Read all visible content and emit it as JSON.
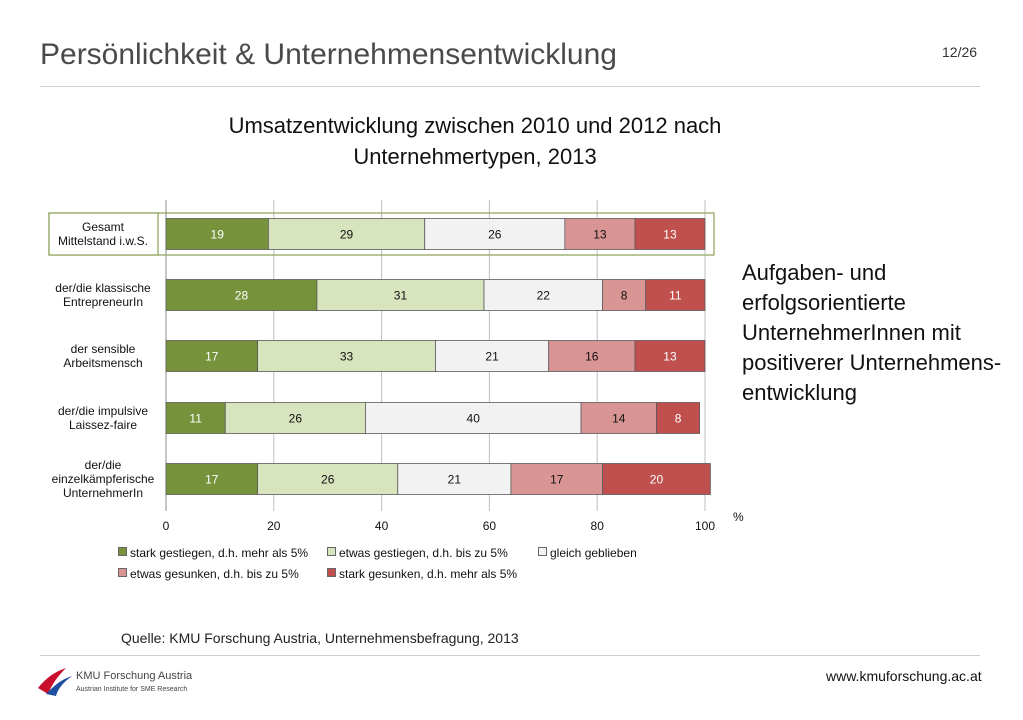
{
  "page": {
    "title": "Persönlichkeit & Unternehmensentwicklung",
    "page_number": "12/26",
    "source": "Quelle: KMU Forschung Austria, Unternehmensbefragung, 2013",
    "website": "www.kmuforschung.ac.at",
    "annotation": "Aufgaben- und erfolgsorientierte UnternehmerInnen mit positiverer Unternehmens-entwicklung"
  },
  "logo": {
    "name": "KMU Forschung Austria",
    "subtitle": "Austrian Institute for SME Research",
    "colors": [
      "#c8102e",
      "#1f4e9c"
    ]
  },
  "chart_data": {
    "type": "bar",
    "orientation": "horizontal",
    "stacked": true,
    "title": "Umsatzentwicklung zwischen 2010 und 2012 nach Unternehmertypen, 2013",
    "xlabel": "%",
    "ylabel": "",
    "xlim": [
      0,
      100
    ],
    "xticks": [
      0,
      20,
      40,
      60,
      80,
      100
    ],
    "grid": "vertical",
    "legend_position": "bottom",
    "highlighted_category": "Gesamt Mittelstand i.w.S.",
    "highlight_color": "#8aa058",
    "categories": [
      [
        "Gesamt",
        "Mittelstand i.w.S."
      ],
      [
        "der/die klassische",
        "EntrepreneurIn"
      ],
      [
        "der sensible",
        "Arbeitsmensch"
      ],
      [
        "der/die impulsive",
        "Laissez-faire"
      ],
      [
        "der/die",
        "einzelkämpferische",
        "UnternehmerIn"
      ]
    ],
    "series": [
      {
        "name": "stark gestiegen, d.h. mehr als 5%",
        "color": "#76933c",
        "values": [
          19,
          28,
          17,
          11,
          17
        ]
      },
      {
        "name": "etwas gestiegen, d.h. bis zu 5%",
        "color": "#d7e4bd",
        "values": [
          29,
          31,
          33,
          26,
          26
        ]
      },
      {
        "name": "gleich geblieben",
        "color": "#f2f2f2",
        "values": [
          26,
          22,
          21,
          40,
          21
        ]
      },
      {
        "name": "etwas gesunken, d.h. bis zu 5%",
        "color": "#d99594",
        "values": [
          13,
          8,
          16,
          14,
          17
        ]
      },
      {
        "name": "stark gesunken, d.h. mehr als 5%",
        "color": "#c0504d",
        "values": [
          13,
          11,
          13,
          8,
          20
        ]
      }
    ]
  }
}
